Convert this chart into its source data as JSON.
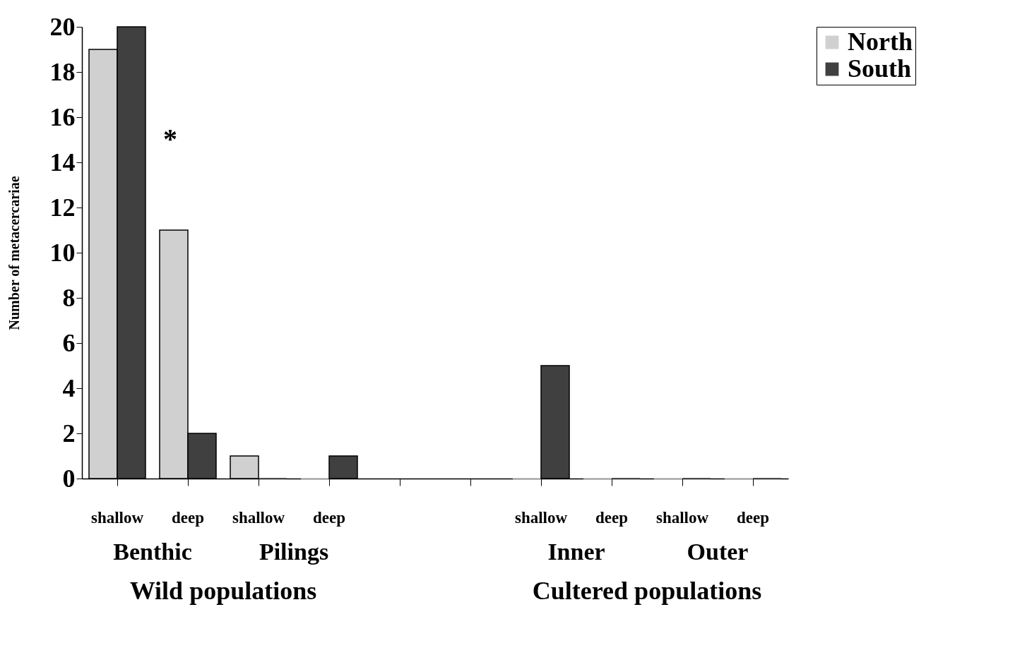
{
  "chart_data": {
    "type": "bar",
    "ylabel": "Number of metacercariae",
    "categories": [
      "shallow",
      "deep",
      "shallow",
      "deep",
      null,
      null,
      "shallow",
      "deep",
      "shallow",
      "deep"
    ],
    "series": [
      {
        "name": "North",
        "color": "#d0d0d0",
        "values": [
          19,
          11,
          1,
          0,
          null,
          null,
          0,
          0,
          0,
          0
        ]
      },
      {
        "name": "South",
        "color": "#404040",
        "values": [
          20,
          2,
          0,
          1,
          null,
          null,
          5,
          0,
          0,
          0
        ]
      }
    ],
    "ylim": [
      0,
      20
    ],
    "yticks": [
      0,
      2,
      4,
      6,
      8,
      10,
      12,
      14,
      16,
      18,
      20
    ],
    "grid": false,
    "legend": "right",
    "annotations": [
      "*",
      "Benthic",
      "Pilings",
      "Inner",
      "Outer",
      "Wild populations",
      "Cultered populations"
    ]
  }
}
